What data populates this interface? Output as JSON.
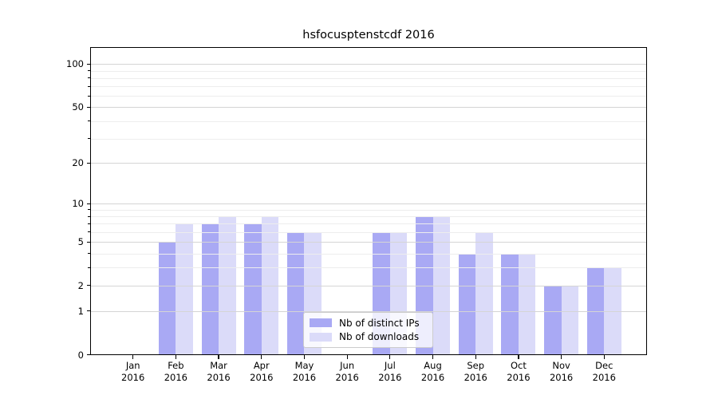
{
  "chart_data": {
    "type": "bar",
    "title": "hsfocusptenstcdf 2016",
    "categories": [
      "Jan",
      "Feb",
      "Mar",
      "Apr",
      "May",
      "Jun",
      "Jul",
      "Aug",
      "Sep",
      "Oct",
      "Nov",
      "Dec"
    ],
    "year_label": "2016",
    "series": [
      {
        "name": "Nb of distinct IPs",
        "color": "#a9a9f4",
        "values": [
          0,
          5,
          7,
          7,
          6,
          0,
          6,
          8,
          4,
          4,
          2,
          3
        ]
      },
      {
        "name": "Nb of downloads",
        "color": "#dbdbf9",
        "values": [
          0,
          7,
          8,
          8,
          6,
          0,
          6,
          8,
          6,
          4,
          2,
          3
        ]
      }
    ],
    "yscale": "log1p",
    "ylim": [
      0,
      115
    ],
    "yticks": [
      0,
      1,
      2,
      5,
      10,
      20,
      50,
      100
    ],
    "yticks_minor": [
      3,
      4,
      6,
      7,
      8,
      9,
      30,
      40,
      60,
      70,
      80,
      90
    ],
    "grid": "on",
    "legend_position": "lower-center",
    "axis_color": "#000000",
    "grid_major_color": "#d5d5d5",
    "grid_minor_color": "#ededed"
  }
}
